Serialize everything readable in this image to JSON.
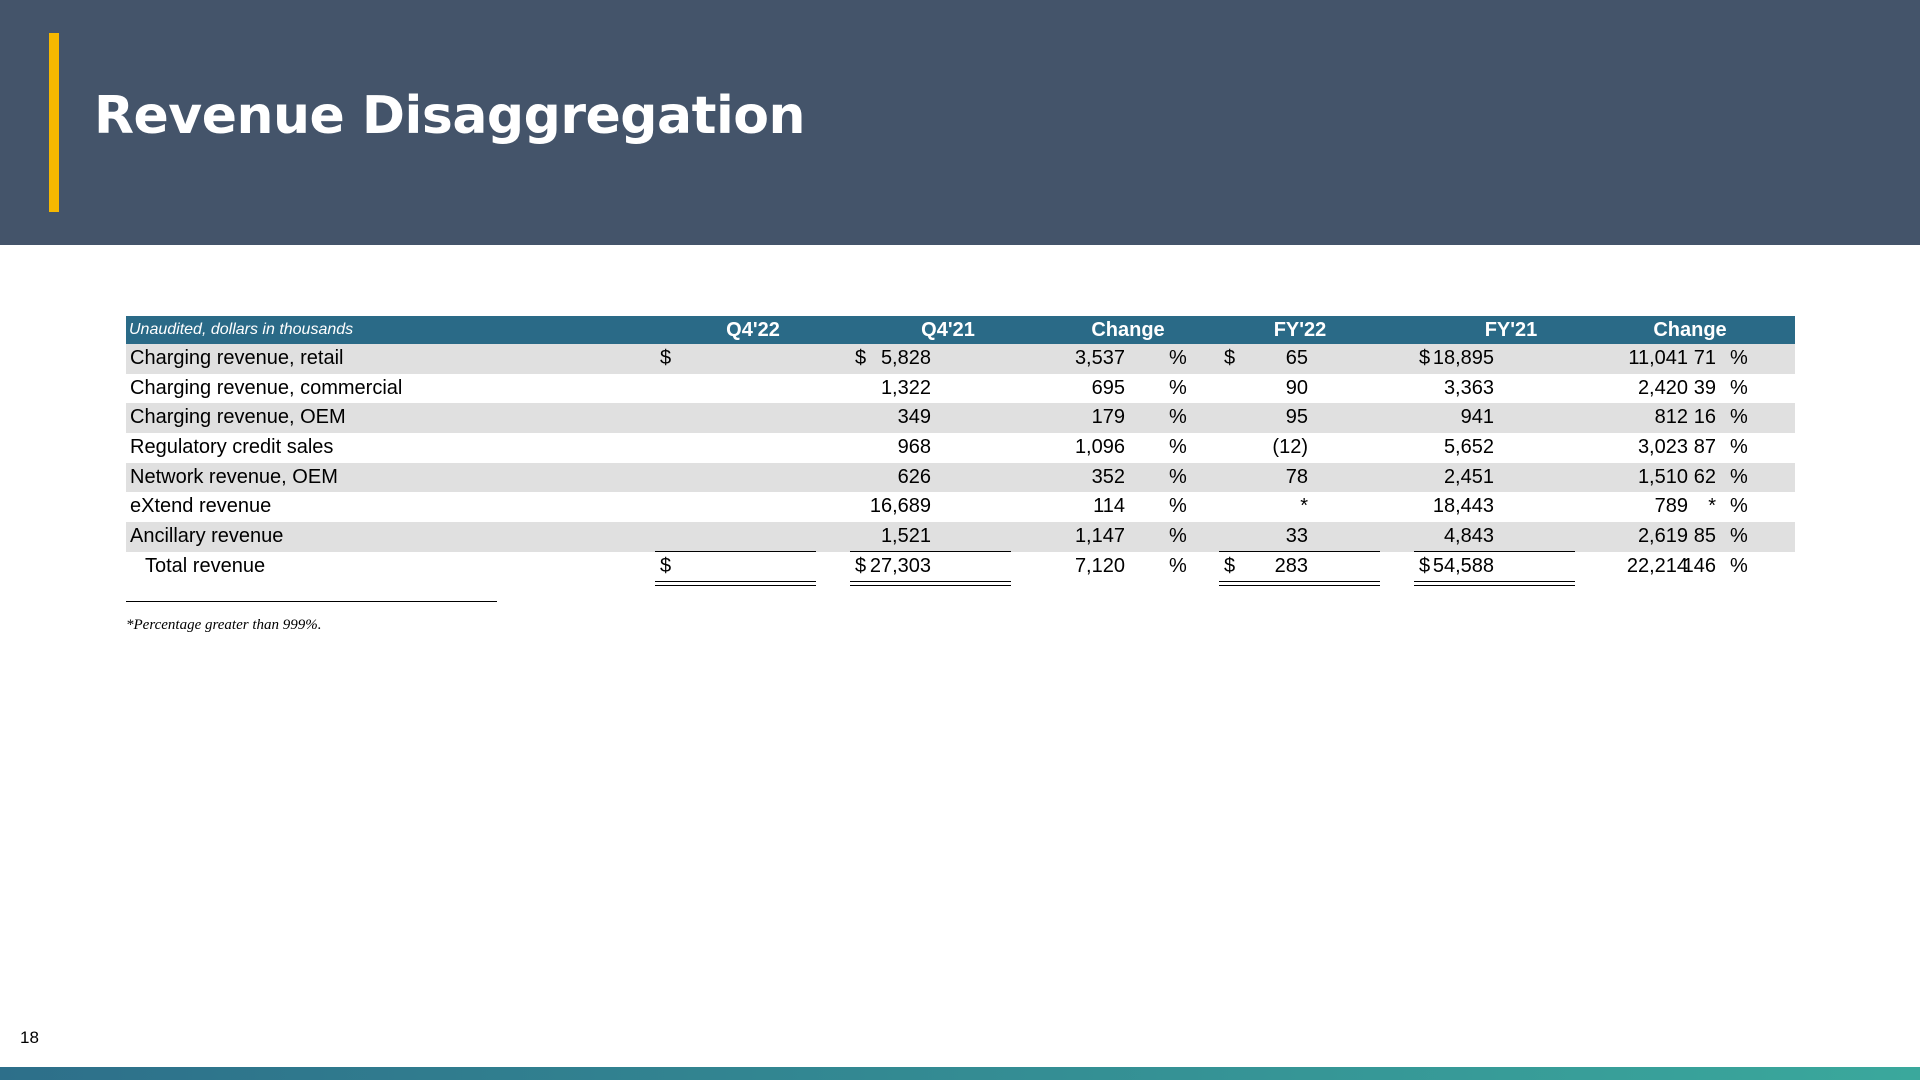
{
  "slide": {
    "title": "Revenue Disaggregation",
    "page_number": "18",
    "footnote": "*Percentage greater than 999%."
  },
  "table": {
    "note": "Unaudited, dollars in thousands",
    "headers": {
      "q4_22": "Q4'22",
      "q4_21": "Q4'21",
      "change1": "Change",
      "fy22": "FY'22",
      "fy21": "FY'21",
      "change2": "Change"
    },
    "rows": [
      {
        "label": "Charging revenue, retail",
        "q4_22": "5,828",
        "q4_21": "3,537",
        "change1": "65",
        "fy22": "18,895",
        "fy21": "11,041",
        "change2": "71"
      },
      {
        "label": "Charging revenue, commercial",
        "q4_22": "1,322",
        "q4_21": "695",
        "change1": "90",
        "fy22": "3,363",
        "fy21": "2,420",
        "change2": "39"
      },
      {
        "label": "Charging revenue, OEM",
        "q4_22": "349",
        "q4_21": "179",
        "change1": "95",
        "fy22": "941",
        "fy21": "812",
        "change2": "16"
      },
      {
        "label": "Regulatory credit sales",
        "q4_22": "968",
        "q4_21": "1,096",
        "change1": "(12)",
        "fy22": "5,652",
        "fy21": "3,023",
        "change2": "87"
      },
      {
        "label": "Network revenue, OEM",
        "q4_22": "626",
        "q4_21": "352",
        "change1": "78",
        "fy22": "2,451",
        "fy21": "1,510",
        "change2": "62"
      },
      {
        "label": "eXtend revenue",
        "q4_22": "16,689",
        "q4_21": "114",
        "change1": "*",
        "fy22": "18,443",
        "fy21": "789",
        "change2": "*"
      },
      {
        "label": "Ancillary revenue",
        "q4_22": "1,521",
        "q4_21": "1,147",
        "change1": "33",
        "fy22": "4,843",
        "fy21": "2,619",
        "change2": "85"
      }
    ],
    "total": {
      "label": "Total revenue",
      "q4_22": "27,303",
      "q4_21": "7,120",
      "change1": "283",
      "fy22": "54,588",
      "fy21": "22,214",
      "change2": "146"
    },
    "currency_symbol": "$",
    "percent_symbol": "%"
  }
}
